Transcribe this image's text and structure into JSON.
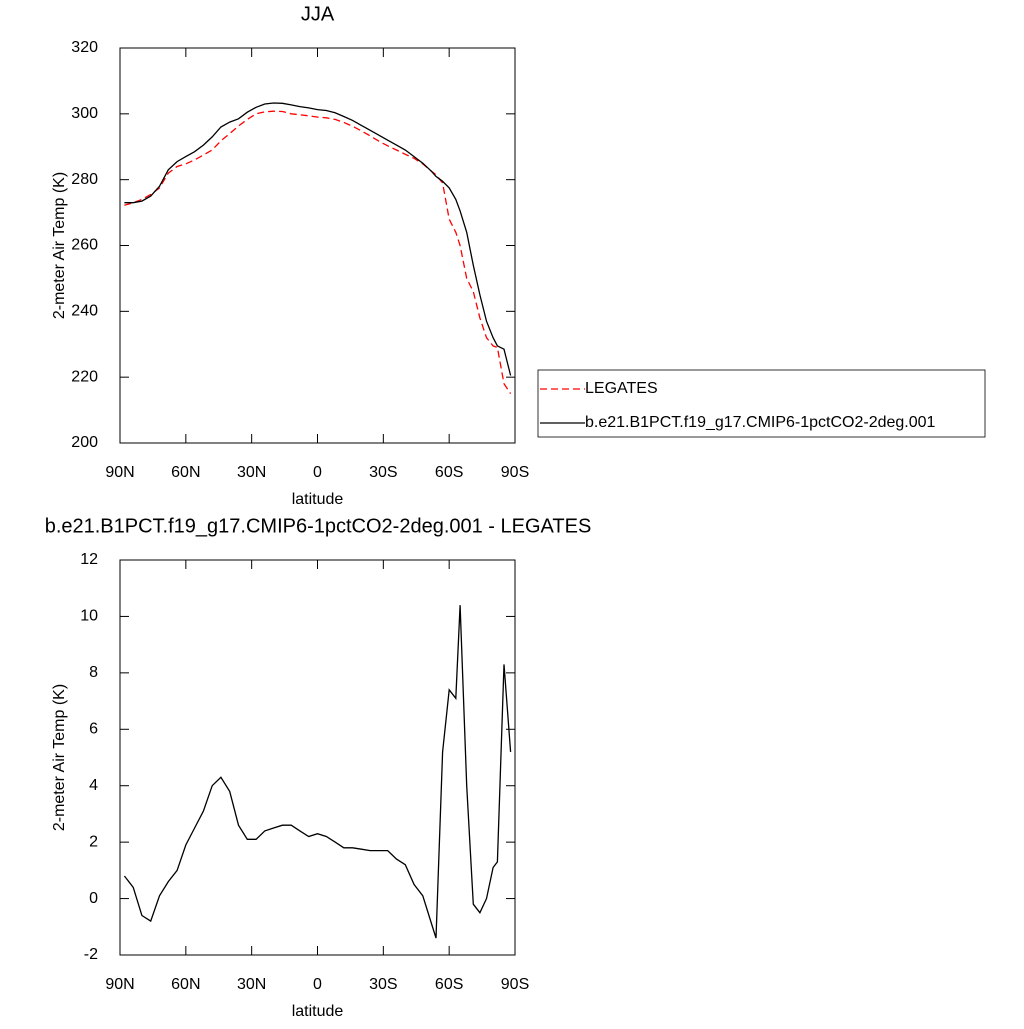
{
  "chart_data": [
    {
      "type": "line",
      "title": "JJA",
      "xlabel": "latitude",
      "ylabel": "2-meter Air Temp (K)",
      "x": [
        88,
        84,
        80,
        76,
        72,
        68,
        64,
        60,
        56,
        52,
        48,
        44,
        40,
        36,
        32,
        28,
        24,
        20,
        16,
        12,
        8,
        4,
        0,
        -4,
        -8,
        -12,
        -16,
        -20,
        -24,
        -28,
        -32,
        -36,
        -40,
        -44,
        -48,
        -52,
        -54,
        -57,
        -60,
        -63,
        -65,
        -68,
        -71,
        -74,
        -77,
        -80,
        -82,
        -85,
        -88
      ],
      "series": [
        {
          "name": "LEGATES",
          "color": "#ff0000",
          "dashed": true,
          "values": [
            272.2,
            273,
            274,
            275.5,
            277.5,
            282,
            284,
            284.8,
            286,
            287.5,
            289,
            291.8,
            294,
            296.3,
            298.3,
            300,
            300.6,
            300.8,
            300.7,
            300,
            299.7,
            299.4,
            299,
            298.8,
            298.3,
            297.4,
            296.2,
            294.8,
            293.3,
            291.7,
            290.3,
            289,
            287.7,
            286.5,
            284.8,
            282.5,
            281.5,
            279,
            268,
            264,
            260,
            250,
            246,
            238,
            232,
            229.5,
            229,
            218,
            215
          ]
        },
        {
          "name": "b.e21.B1PCT.f19_g17.CMIP6-1pctCO2-2deg.001",
          "color": "#000000",
          "dashed": false,
          "values": [
            273,
            273,
            273.5,
            275,
            278,
            283,
            285.5,
            287,
            288.5,
            290.5,
            293,
            296,
            297.5,
            298.5,
            300.5,
            302,
            303,
            303.3,
            303.2,
            302.7,
            302.2,
            301.8,
            301.3,
            301,
            300.3,
            299.2,
            298,
            296.5,
            295,
            293.5,
            292,
            290.5,
            289,
            287,
            285,
            282.5,
            281,
            279.5,
            277.5,
            274,
            270.5,
            264,
            254,
            245,
            237,
            232,
            229.5,
            228.5,
            220.5
          ]
        }
      ],
      "xlim": [
        90,
        -90
      ],
      "xticks": [
        {
          "value": 90,
          "label": "90N"
        },
        {
          "value": 60,
          "label": "60N"
        },
        {
          "value": 30,
          "label": "30N"
        },
        0,
        {
          "value": -30,
          "label": "30S"
        },
        {
          "value": -60,
          "label": "60S"
        },
        {
          "value": -90,
          "label": "90S"
        }
      ],
      "ylim": [
        200,
        320
      ],
      "yticks": [
        200,
        220,
        240,
        260,
        280,
        300,
        320
      ],
      "legend": "right"
    },
    {
      "type": "line",
      "title": "b.e21.B1PCT.f19_g17.CMIP6-1pctCO2-2deg.001 - LEGATES",
      "xlabel": "latitude",
      "ylabel": "2-meter Air Temp (K)",
      "x": [
        88,
        84,
        80,
        76,
        72,
        68,
        64,
        60,
        56,
        52,
        48,
        44,
        40,
        36,
        32,
        28,
        24,
        20,
        16,
        12,
        8,
        4,
        0,
        -4,
        -8,
        -12,
        -16,
        -20,
        -24,
        -28,
        -32,
        -36,
        -40,
        -44,
        -48,
        -52,
        -54,
        -57,
        -60,
        -63,
        -65,
        -68,
        -71,
        -74,
        -77,
        -80,
        -82,
        -85,
        -88
      ],
      "series": [
        {
          "color": "#000000",
          "dashed": false,
          "values": [
            0.8,
            0.4,
            -0.6,
            -0.8,
            0.1,
            0.6,
            1.0,
            1.9,
            2.5,
            3.1,
            4.0,
            4.3,
            3.8,
            2.6,
            2.1,
            2.1,
            2.4,
            2.5,
            2.6,
            2.6,
            2.4,
            2.2,
            2.3,
            2.2,
            2.0,
            1.8,
            1.8,
            1.75,
            1.7,
            1.7,
            1.7,
            1.4,
            1.2,
            0.5,
            0.1,
            -0.9,
            -1.4,
            5.2,
            7.4,
            7.1,
            10.4,
            4.0,
            -0.2,
            -0.5,
            0.0,
            1.1,
            1.3,
            8.3,
            5.2
          ]
        }
      ],
      "xlim": [
        90,
        -90
      ],
      "xticks": [
        {
          "value": 90,
          "label": "90N"
        },
        {
          "value": 60,
          "label": "60N"
        },
        {
          "value": 30,
          "label": "30N"
        },
        0,
        {
          "value": -30,
          "label": "30S"
        },
        {
          "value": -60,
          "label": "60S"
        },
        {
          "value": -90,
          "label": "90S"
        }
      ],
      "ylim": [
        -2,
        12
      ],
      "yticks": [
        -2,
        0,
        2,
        4,
        6,
        8,
        10,
        12
      ]
    }
  ]
}
